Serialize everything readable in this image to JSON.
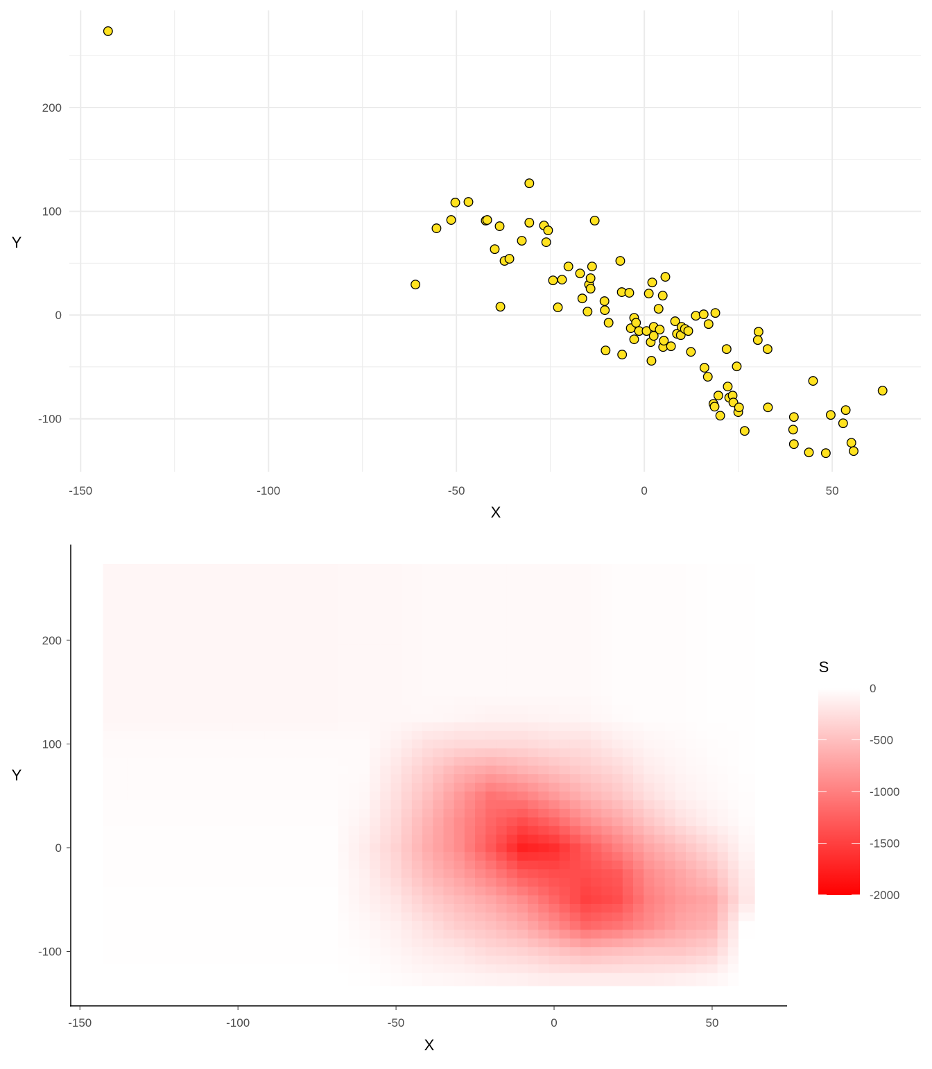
{
  "chart_data": [
    {
      "type": "scatter",
      "xlabel": "X",
      "ylabel": "Y",
      "xlim": [
        -153,
        73.6
      ],
      "ylim": [
        -151,
        293.6
      ],
      "x_ticks": [
        -150,
        -100,
        -50,
        0,
        50
      ],
      "y_ticks": [
        -100,
        0,
        100,
        200
      ],
      "grid": true,
      "colors": {
        "point_fill": "#FFE21F",
        "point_stroke": "#000000",
        "grid": "#EBEBEB"
      },
      "points": [
        [
          -142.7,
          273.6
        ],
        [
          -60.9,
          29.4
        ],
        [
          -55.3,
          83.6
        ],
        [
          -51.4,
          91.6
        ],
        [
          -50.3,
          108.4
        ],
        [
          -46.8,
          109
        ],
        [
          -42.2,
          91
        ],
        [
          -41.8,
          91.6
        ],
        [
          -38.5,
          85.6
        ],
        [
          -39.8,
          63.5
        ],
        [
          -38.3,
          8
        ],
        [
          -37.2,
          52.2
        ],
        [
          -35.9,
          54.2
        ],
        [
          -32.6,
          71.6
        ],
        [
          -30.6,
          127
        ],
        [
          -30.6,
          89
        ],
        [
          -26.7,
          86.3
        ],
        [
          -25.6,
          81.6
        ],
        [
          -26.1,
          70.2
        ],
        [
          -24.3,
          33.4
        ],
        [
          -23,
          7.4
        ],
        [
          -21.9,
          34.1
        ],
        [
          -20.2,
          46.8
        ],
        [
          -17.1,
          40.1
        ],
        [
          -16.5,
          16
        ],
        [
          -15.1,
          3.3
        ],
        [
          -14.7,
          29.4
        ],
        [
          -14.3,
          35.5
        ],
        [
          -14.3,
          25.4
        ],
        [
          -13.9,
          46.8
        ],
        [
          -13.2,
          91
        ],
        [
          -10.6,
          13.4
        ],
        [
          -10.5,
          4.7
        ],
        [
          -9.5,
          -7.4
        ],
        [
          -10.3,
          -34.1
        ],
        [
          -6.4,
          52.2
        ],
        [
          -6.0,
          22.1
        ],
        [
          -5.9,
          -38.1
        ],
        [
          -4.0,
          21.4
        ],
        [
          -3.6,
          -12.7
        ],
        [
          -2.7,
          -2.7
        ],
        [
          -2.2,
          -7.4
        ],
        [
          -2.7,
          -23.4
        ],
        [
          -1.4,
          -15.4
        ],
        [
          0.6,
          -15.4
        ],
        [
          1.2,
          20.7
        ],
        [
          1.7,
          -26.1
        ],
        [
          1.9,
          -44.1
        ],
        [
          2.1,
          31.4
        ],
        [
          2.5,
          -11.4
        ],
        [
          2.5,
          -20.1
        ],
        [
          3.8,
          6.0
        ],
        [
          4.1,
          -14.0
        ],
        [
          4.9,
          18.7
        ],
        [
          5.0,
          -30.8
        ],
        [
          5.2,
          -24.7
        ],
        [
          5.6,
          36.8
        ],
        [
          7.1,
          -30.1
        ],
        [
          8.2,
          -6.0
        ],
        [
          8.7,
          -18.1
        ],
        [
          9.7,
          -19.4
        ],
        [
          9.9,
          -11.4
        ],
        [
          10.8,
          -13.4
        ],
        [
          11.7,
          -15.4
        ],
        [
          12.4,
          -35.5
        ],
        [
          13.7,
          -0.7
        ],
        [
          15.8,
          0.7
        ],
        [
          16.0,
          -50.8
        ],
        [
          16.9,
          -59.5
        ],
        [
          17.1,
          -8.7
        ],
        [
          18.9,
          2.0
        ],
        [
          18.4,
          -85.6
        ],
        [
          18.7,
          -88.3
        ],
        [
          19.7,
          -77.6
        ],
        [
          20.2,
          -97.0
        ],
        [
          21.9,
          -32.8
        ],
        [
          22.2,
          -68.9
        ],
        [
          22.6,
          -79.6
        ],
        [
          23.5,
          -77.6
        ],
        [
          23.7,
          -84.3
        ],
        [
          24.6,
          -49.5
        ],
        [
          25.0,
          -93.6
        ],
        [
          25.2,
          -89.0
        ],
        [
          26.7,
          -111.7
        ],
        [
          30.4,
          -16.1
        ],
        [
          30.2,
          -24.1
        ],
        [
          32.8,
          -32.8
        ],
        [
          32.9,
          -89.0
        ],
        [
          39.8,
          -98.3
        ],
        [
          39.6,
          -110.4
        ],
        [
          39.8,
          -124.4
        ],
        [
          43.8,
          -132.4
        ],
        [
          44.9,
          -63.5
        ],
        [
          48.3,
          -133.1
        ],
        [
          49.6,
          -96.3
        ],
        [
          52.9,
          -104.3
        ],
        [
          53.6,
          -91.6
        ],
        [
          55.1,
          -123.1
        ],
        [
          55.7,
          -131.1
        ],
        [
          63.4,
          -72.9
        ]
      ]
    },
    {
      "type": "heatmap",
      "xlabel": "X",
      "ylabel": "Y",
      "xlim": [
        -152.9,
        73.7
      ],
      "ylim": [
        -152.5,
        292.3
      ],
      "x_ticks": [
        -150,
        -100,
        -50,
        0,
        50
      ],
      "y_ticks": [
        -100,
        0,
        100,
        200
      ],
      "grid": false,
      "legend": {
        "title": "S",
        "position": "right",
        "ticks": [
          0,
          -500,
          -1000,
          -1500,
          -2000
        ],
        "range": [
          -2000,
          0
        ],
        "low_color": "#FF0000",
        "high_color": "#FFFFFF"
      },
      "x_centers": [
        -140,
        -130,
        -120,
        -110,
        -100,
        -90,
        -80,
        -70,
        -60,
        -50,
        -40,
        -30,
        -20,
        -10,
        0,
        10,
        20,
        30,
        40,
        50,
        60
      ],
      "y_centers": [
        275,
        250,
        225,
        200,
        175,
        150,
        125,
        100,
        75,
        50,
        25,
        0,
        -25,
        -50,
        -75,
        -100,
        -125
      ],
      "values": [
        [
          -70,
          -70,
          -70,
          -70,
          -70,
          -70,
          -70,
          -70,
          -60,
          -60,
          -50,
          -50,
          -50,
          -50,
          -50,
          -50,
          -20,
          -20,
          -20,
          -10,
          -10
        ],
        [
          -70,
          -70,
          -70,
          -70,
          -70,
          -70,
          -70,
          -70,
          -60,
          -60,
          -50,
          -50,
          -50,
          -50,
          -50,
          -50,
          -20,
          -20,
          -20,
          -10,
          -10
        ],
        [
          -70,
          -70,
          -70,
          -70,
          -70,
          -70,
          -70,
          -70,
          -60,
          -60,
          -50,
          -50,
          -50,
          -50,
          -50,
          -50,
          -20,
          -20,
          -20,
          -10,
          -10
        ],
        [
          -70,
          -70,
          -70,
          -70,
          -70,
          -70,
          -70,
          -70,
          -60,
          -60,
          -50,
          -50,
          -50,
          -50,
          -50,
          -50,
          -20,
          -20,
          -20,
          -10,
          -10
        ],
        [
          -70,
          -70,
          -70,
          -70,
          -70,
          -70,
          -70,
          -70,
          -60,
          -60,
          -50,
          -50,
          -50,
          -50,
          -50,
          -50,
          -20,
          -20,
          -20,
          -10,
          -10
        ],
        [
          -70,
          -70,
          -70,
          -70,
          -70,
          -70,
          -70,
          -70,
          -60,
          -60,
          -50,
          -50,
          -50,
          -50,
          -50,
          -50,
          -20,
          -20,
          -20,
          -10,
          -10
        ],
        [
          -70,
          -70,
          -70,
          -70,
          -70,
          -70,
          -70,
          -70,
          -60,
          -60,
          -60,
          -80,
          -100,
          -100,
          -90,
          -80,
          -40,
          -20,
          -20,
          -10,
          -10
        ],
        [
          -40,
          -40,
          -40,
          -40,
          -40,
          -40,
          -40,
          -40,
          -40,
          -120,
          -250,
          -300,
          -300,
          -300,
          -250,
          -250,
          -150,
          -80,
          -50,
          -20,
          -10
        ],
        [
          -30,
          -30,
          -30,
          -30,
          -30,
          -30,
          -30,
          -30,
          -40,
          -200,
          -400,
          -600,
          -700,
          -600,
          -500,
          -400,
          -300,
          -150,
          -80,
          -40,
          -10
        ],
        [
          -30,
          -30,
          -30,
          -30,
          -30,
          -30,
          -30,
          -30,
          -60,
          -250,
          -500,
          -800,
          -1100,
          -1000,
          -800,
          -600,
          -450,
          -250,
          -120,
          -60,
          -20
        ],
        [
          -20,
          -20,
          -20,
          -20,
          -20,
          -20,
          -20,
          -20,
          -100,
          -300,
          -600,
          -900,
          -1200,
          -1400,
          -1200,
          -900,
          -700,
          -450,
          -250,
          -120,
          -30
        ],
        [
          -15,
          -15,
          -15,
          -15,
          -15,
          -15,
          -15,
          -15,
          -150,
          -350,
          -650,
          -900,
          -1300,
          -1750,
          -1650,
          -1300,
          -1000,
          -700,
          -500,
          -300,
          -80
        ],
        [
          -15,
          -15,
          -15,
          -15,
          -15,
          -15,
          -15,
          -15,
          -120,
          -300,
          -550,
          -750,
          -1000,
          -1300,
          -1400,
          -1400,
          -1300,
          -900,
          -700,
          -500,
          -150
        ],
        [
          -10,
          -10,
          -10,
          -10,
          -10,
          -10,
          -10,
          -10,
          -100,
          -200,
          -400,
          -550,
          -700,
          -900,
          -1200,
          -1500,
          -1400,
          -1000,
          -800,
          -700,
          -200
        ],
        [
          -10,
          -10,
          -10,
          -10,
          -10,
          -10,
          -10,
          -10,
          -60,
          -120,
          -250,
          -400,
          -500,
          -650,
          -900,
          -1200,
          -1100,
          -900,
          -700,
          -600,
          -10
        ],
        [
          -10,
          -10,
          -10,
          -10,
          -10,
          -10,
          -10,
          -10,
          -30,
          -80,
          -150,
          -200,
          -300,
          -350,
          -450,
          -550,
          -500,
          -450,
          -450,
          -350,
          0
        ],
        [
          0,
          0,
          0,
          0,
          0,
          0,
          0,
          0,
          -10,
          -30,
          -60,
          -80,
          -100,
          -120,
          -150,
          -150,
          -150,
          -150,
          -120,
          -80,
          0
        ]
      ]
    }
  ]
}
